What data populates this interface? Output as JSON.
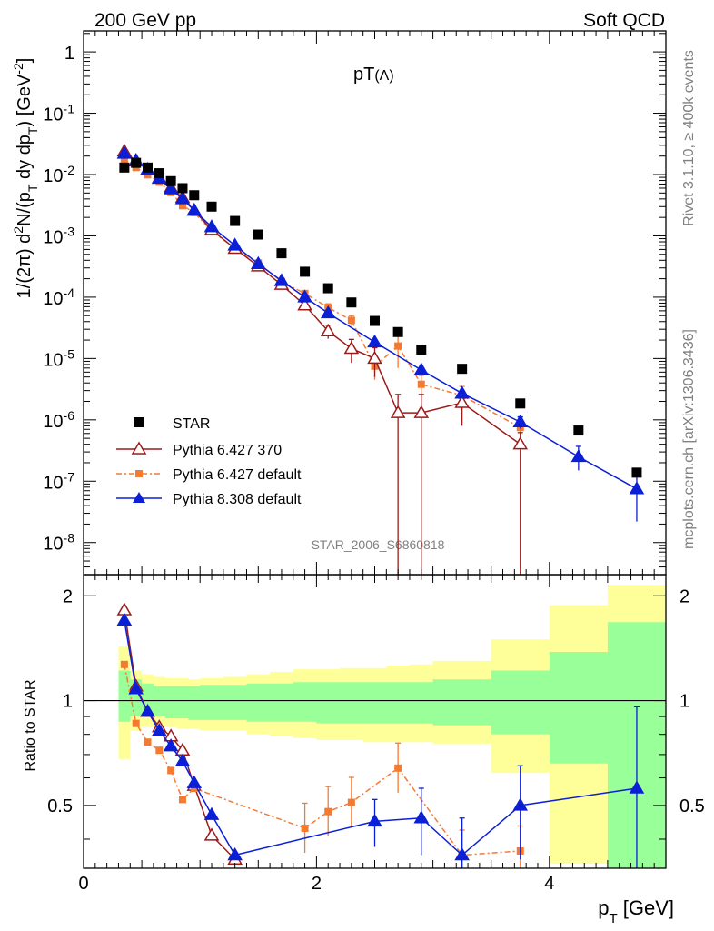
{
  "header": {
    "left": "200 GeV pp",
    "right": "Soft QCD",
    "title_main": "pT",
    "title_paren": "(Λ)",
    "watermark": "STAR_2006_S6860818",
    "side_top": "Rivet 3.1.10, ≥ 400k events",
    "side_bottom": "mcplots.cern.ch [arXiv:1306.3436]"
  },
  "axes": {
    "ylabel_main": "1/(2π) d²N/(p_T dy dp_T) [GeV⁻²]",
    "ylabel_ratio": "Ratio to STAR",
    "xlabel": "p_T [GeV]",
    "x_ticks": [
      "0",
      "2",
      "4"
    ],
    "y_ticks_main": [
      "1",
      "10⁻¹",
      "10⁻²",
      "10⁻³",
      "10⁻⁴",
      "10⁻⁵",
      "10⁻⁶",
      "10⁻⁷",
      "10⁻⁸"
    ],
    "y_ticks_ratio": [
      "2",
      "1",
      "0.5"
    ]
  },
  "legend": {
    "star": "STAR",
    "p6_370": "Pythia 6.427 370",
    "p6_def": "Pythia 6.427 default",
    "p8_def": "Pythia 8.308 default"
  },
  "colors": {
    "star": "#000000",
    "p6_370": "#9b1b1b",
    "p6_def": "#f47a32",
    "p8_def": "#0b1fd6",
    "band_inner": "#99ff99",
    "band_outer": "#ffff99"
  },
  "chart_data": {
    "type": "scatter",
    "x_range": [
      0,
      5.0
    ],
    "main_y_range": [
      3e-09,
      2.2
    ],
    "main_y_scale": "log",
    "ratio_y_range": [
      0.33,
      2.3
    ],
    "ratio_y_scale": "log",
    "legend_placement": "lower-left",
    "star": {
      "name": "STAR",
      "x": [
        0.35,
        0.45,
        0.55,
        0.65,
        0.75,
        0.85,
        0.95,
        1.1,
        1.3,
        1.5,
        1.7,
        1.9,
        2.1,
        2.3,
        2.5,
        2.7,
        2.9,
        3.25,
        3.75,
        4.25,
        4.75
      ],
      "y": [
        0.013,
        0.0155,
        0.013,
        0.0105,
        0.0078,
        0.006,
        0.0046,
        0.003,
        0.00175,
        0.00105,
        0.00052,
        0.00026,
        0.00014,
        8.2e-05,
        4.1e-05,
        2.7e-05,
        1.4e-05,
        6.8e-06,
        1.85e-06,
        6.7e-07,
        1.38e-07
      ],
      "band_x": [
        0.3,
        0.4,
        0.5,
        0.6,
        0.7,
        0.8,
        0.9,
        1.0,
        1.2,
        1.4,
        1.6,
        1.8,
        2.0,
        2.2,
        2.4,
        2.6,
        2.8,
        3.0,
        3.5,
        4.0,
        4.5,
        5.0
      ],
      "band_inner_lo": [
        0.87,
        0.9,
        0.9,
        0.9,
        0.89,
        0.89,
        0.88,
        0.88,
        0.88,
        0.87,
        0.87,
        0.87,
        0.86,
        0.86,
        0.86,
        0.86,
        0.86,
        0.85,
        0.8,
        0.66,
        0.33,
        0.33
      ],
      "band_inner_hi": [
        1.22,
        1.15,
        1.12,
        1.1,
        1.1,
        1.1,
        1.1,
        1.11,
        1.11,
        1.12,
        1.12,
        1.13,
        1.13,
        1.13,
        1.13,
        1.13,
        1.13,
        1.15,
        1.22,
        1.38,
        1.68,
        1.68
      ],
      "band_outer_lo": [
        0.68,
        0.82,
        0.84,
        0.84,
        0.84,
        0.83,
        0.83,
        0.82,
        0.82,
        0.8,
        0.79,
        0.78,
        0.77,
        0.77,
        0.76,
        0.76,
        0.76,
        0.75,
        0.62,
        0.34,
        0.33,
        0.33
      ],
      "band_outer_hi": [
        1.43,
        1.22,
        1.19,
        1.17,
        1.16,
        1.16,
        1.15,
        1.16,
        1.17,
        1.19,
        1.21,
        1.23,
        1.23,
        1.24,
        1.24,
        1.26,
        1.27,
        1.3,
        1.5,
        1.88,
        2.15,
        2.15
      ]
    },
    "p6_370": {
      "name": "Pythia 6.427 370",
      "x": [
        0.35,
        0.45,
        0.55,
        0.65,
        0.75,
        0.85,
        0.95,
        1.1,
        1.3,
        1.5,
        1.7,
        1.9,
        2.1,
        2.3,
        2.5,
        2.7,
        2.9,
        3.25,
        3.75
      ],
      "y": [
        0.024,
        0.0165,
        0.012,
        0.0088,
        0.0061,
        0.0042,
        0.0026,
        0.00125,
        0.00062,
        0.00032,
        0.00016,
        7.4e-05,
        2.8e-05,
        1.45e-05,
        1e-05,
        1.3e-06,
        1.3e-06,
        1.9e-06,
        4e-07
      ],
      "yerr_lo": [
        0,
        0,
        0,
        0,
        0,
        0,
        0,
        0,
        0,
        0,
        0,
        0,
        7e-06,
        6e-06,
        5e-06,
        1.3e-06,
        1.3e-06,
        1.1e-06,
        4e-07
      ],
      "yerr_hi": [
        0,
        0,
        0,
        0,
        0,
        0,
        0,
        0,
        0,
        0,
        0,
        0,
        7e-06,
        6e-06,
        5e-06,
        1.3e-06,
        1.3e-06,
        1.1e-06,
        2.2e-07
      ],
      "ratio": [
        1.82,
        1.1,
        0.93,
        0.84,
        0.79,
        0.72,
        0.57,
        0.41,
        0.35
      ]
    },
    "p6_def": {
      "name": "Pythia 6.427 default",
      "x": [
        0.35,
        0.45,
        0.55,
        0.65,
        0.75,
        0.85,
        0.95,
        1.1,
        1.3,
        1.5,
        1.7,
        1.9,
        2.1,
        2.3,
        2.5,
        2.7,
        2.9,
        3.25,
        3.75
      ],
      "y": [
        0.0165,
        0.013,
        0.0099,
        0.0075,
        0.0051,
        0.0031,
        0.0024,
        0.0012,
        0.00063,
        0.00036,
        0.00018,
        0.000115,
        6.8e-05,
        4.2e-05,
        7.5e-06,
        1.6e-05,
        3.8e-06,
        2.5e-06,
        7.5e-07
      ],
      "yerr_lo": [
        0,
        0,
        0,
        0,
        0,
        0,
        0,
        0,
        0,
        0,
        0,
        0,
        1e-05,
        8e-06,
        3e-06,
        9e-06,
        1.5e-06,
        1e-06,
        3.5e-07
      ],
      "yerr_hi": [
        0,
        0,
        0,
        0,
        0,
        0,
        0,
        0,
        0,
        0,
        0,
        0,
        1e-05,
        8e-06,
        3e-06,
        9e-06,
        1.5e-06,
        1e-06,
        3.5e-07
      ],
      "ratio_x": [
        0.35,
        0.45,
        0.55,
        0.65,
        0.75,
        0.85,
        0.95,
        1.9,
        2.1,
        2.3,
        2.7,
        3.25,
        3.75
      ],
      "ratio": [
        1.27,
        0.86,
        0.76,
        0.72,
        0.63,
        0.52,
        0.56,
        0.43,
        0.48,
        0.51,
        0.64,
        0.36,
        0.37
      ]
    },
    "p8_def": {
      "name": "Pythia 8.308 default",
      "x": [
        0.35,
        0.45,
        0.55,
        0.65,
        0.75,
        0.85,
        0.95,
        1.1,
        1.3,
        1.5,
        1.7,
        1.9,
        2.1,
        2.5,
        2.9,
        3.25,
        3.75,
        4.25,
        4.75
      ],
      "y": [
        0.022,
        0.017,
        0.012,
        0.0086,
        0.0058,
        0.004,
        0.0026,
        0.0014,
        0.0007,
        0.00035,
        0.000185,
        0.0001,
        5.5e-05,
        1.85e-05,
        6.5e-06,
        2.7e-06,
        9.2e-07,
        2.5e-07,
        7.5e-08
      ],
      "yerr_lo": [
        0,
        0,
        0,
        0,
        0,
        0,
        0,
        0,
        0,
        0,
        0,
        0,
        0,
        0,
        0,
        0,
        2e-07,
        1e-07,
        5.3e-08
      ],
      "yerr_hi": [
        0,
        0,
        0,
        0,
        0,
        0,
        0,
        0,
        0,
        0,
        0,
        0,
        0,
        0,
        0,
        0,
        2e-07,
        1.2e-07,
        6.5e-08
      ],
      "ratio_x": [
        0.35,
        0.45,
        0.55,
        0.65,
        0.75,
        0.85,
        0.95,
        1.1,
        1.3,
        2.5,
        2.9,
        3.25,
        3.75,
        4.75
      ],
      "ratio": [
        1.7,
        1.08,
        0.93,
        0.82,
        0.74,
        0.67,
        0.58,
        0.47,
        0.36,
        0.45,
        0.46,
        0.36,
        0.5,
        0.56
      ],
      "ratio_err": [
        0,
        0,
        0,
        0,
        0,
        0,
        0,
        0,
        0,
        0.07,
        0.1,
        0.1,
        0.15,
        0.4
      ]
    }
  }
}
